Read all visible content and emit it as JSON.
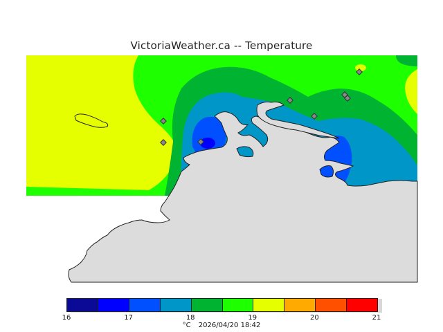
{
  "title": "VictoriaWeather.ca  --  Temperature",
  "legend": {
    "colors": [
      "#0a0a96",
      "#0000ff",
      "#0050ff",
      "#0096c8",
      "#00b432",
      "#1eff00",
      "#e6ff00",
      "#ffaa00",
      "#ff5000",
      "#ff0000"
    ],
    "ticks": [
      "16",
      "17",
      "18",
      "19",
      "20",
      "21"
    ]
  },
  "footer": {
    "unit": "°C",
    "timestamp": "2026/04/20 18:42"
  },
  "map": {
    "land_color": "#dcdcdc",
    "station_count": 8
  }
}
